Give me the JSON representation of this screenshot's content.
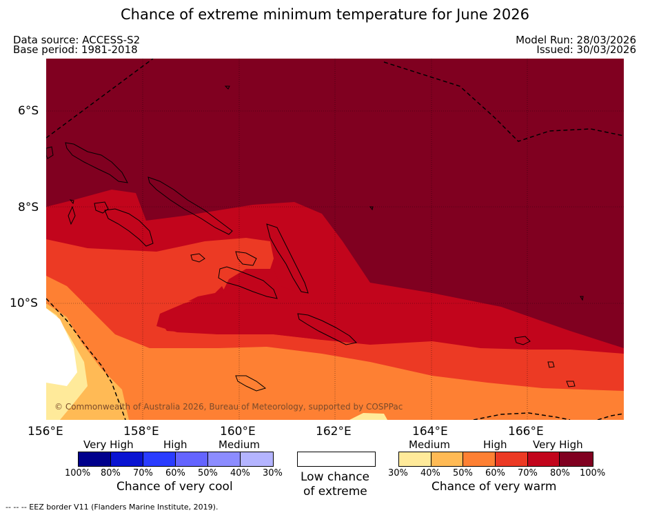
{
  "title": "Chance of extreme minimum temperature for June 2026",
  "meta": {
    "data_source": "Data source: ACCESS-S2",
    "base_period": "Base period: 1981-2018",
    "model_run": "Model Run: 28/03/2026",
    "issued": "Issued: 30/03/2026"
  },
  "map": {
    "lat_labels": [
      "6°S",
      "8°S",
      "10°S"
    ],
    "lon_labels": [
      "156°E",
      "158°E",
      "160°E",
      "162°E",
      "164°E",
      "166°E"
    ],
    "copyright": "© Commonwealth of Australia 2026, Bureau of Meteorology, supported by COSPPac"
  },
  "legend": {
    "cool": {
      "categories": [
        "Very High",
        "High",
        "Medium"
      ],
      "ticks": [
        "100%",
        "80%",
        "70%",
        "60%",
        "50%",
        "40%",
        "30%"
      ],
      "colors": [
        "#00008c",
        "#0a14d2",
        "#2a3cff",
        "#6464ff",
        "#8c8cff",
        "#b4b4ff"
      ],
      "caption": "Chance of very cool"
    },
    "neutral": {
      "caption_line1": "Low chance",
      "caption_line2": "of extreme"
    },
    "warm": {
      "categories": [
        "Medium",
        "High",
        "Very High"
      ],
      "ticks": [
        "30%",
        "40%",
        "50%",
        "60%",
        "70%",
        "80%",
        "100%"
      ],
      "colors": [
        "#ffea9a",
        "#ffba55",
        "#fe8033",
        "#ec3a24",
        "#c2051c",
        "#800020"
      ],
      "caption": "Chance of very warm"
    }
  },
  "footer": "--  --  -- EEZ border V11 (Flanders Marine Institute, 2019)."
}
